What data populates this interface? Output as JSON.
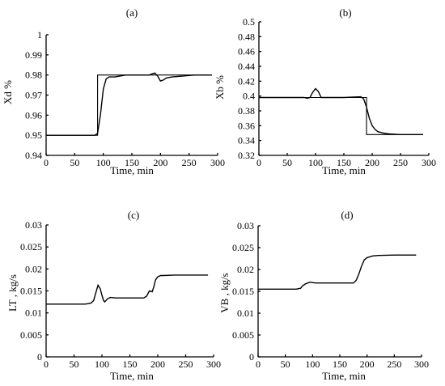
{
  "chart_data": [
    {
      "type": "line",
      "panel": "(a)",
      "xlabel": "Time, min",
      "ylabel": "Xd %",
      "xlim": [
        0,
        300
      ],
      "ylim": [
        0.94,
        1.0
      ],
      "xticks": [
        "0",
        "50",
        "100",
        "150",
        "200",
        "250",
        "300"
      ],
      "yticks": [
        "0.94",
        "0.95",
        "0.96",
        "0.97",
        "0.98",
        "0.99",
        "1"
      ],
      "series": [
        {
          "style": "setpoint",
          "x": [
            0,
            90,
            90,
            100,
            200,
            290
          ],
          "y": [
            0.95,
            0.95,
            0.98,
            0.98,
            0.98,
            0.98
          ]
        },
        {
          "style": "response",
          "x": [
            0,
            85,
            90,
            95,
            100,
            105,
            110,
            120,
            140,
            170,
            180,
            185,
            190,
            195,
            200,
            205,
            210,
            220,
            240,
            260,
            290
          ],
          "y": [
            0.95,
            0.95,
            0.951,
            0.96,
            0.973,
            0.978,
            0.979,
            0.979,
            0.98,
            0.98,
            0.98,
            0.9805,
            0.981,
            0.9795,
            0.977,
            0.9775,
            0.9785,
            0.979,
            0.9795,
            0.98,
            0.98
          ]
        }
      ]
    },
    {
      "type": "line",
      "panel": "(b)",
      "xlabel": "Time, min",
      "ylabel": "Xb %",
      "xlim": [
        0,
        300
      ],
      "ylim": [
        0.32,
        0.5
      ],
      "xticks": [
        "0",
        "50",
        "100",
        "150",
        "200",
        "250",
        "300"
      ],
      "yticks": [
        "0.32",
        "0.34",
        "0.36",
        "0.38",
        "0.4",
        "0.42",
        "0.44",
        "0.46",
        "0.48",
        "0.5"
      ],
      "series": [
        {
          "style": "setpoint",
          "x": [
            0,
            190,
            190,
            290
          ],
          "y": [
            0.398,
            0.398,
            0.348,
            0.348
          ]
        },
        {
          "style": "response",
          "x": [
            0,
            80,
            85,
            90,
            95,
            100,
            105,
            110,
            115,
            150,
            180,
            185,
            190,
            195,
            200,
            205,
            210,
            220,
            230,
            250,
            290
          ],
          "y": [
            0.398,
            0.398,
            0.397,
            0.398,
            0.405,
            0.41,
            0.406,
            0.398,
            0.398,
            0.398,
            0.399,
            0.396,
            0.385,
            0.37,
            0.36,
            0.355,
            0.352,
            0.35,
            0.349,
            0.348,
            0.348
          ]
        }
      ]
    },
    {
      "type": "line",
      "panel": "(c)",
      "xlabel": "Time, min",
      "ylabel": "LT , kg/s",
      "xlim": [
        0,
        300
      ],
      "ylim": [
        0,
        0.03
      ],
      "xticks": [
        "0",
        "50",
        "100",
        "150",
        "200",
        "250",
        "300"
      ],
      "yticks": [
        "0",
        "0.005",
        "0.01",
        "0.015",
        "0.02",
        "0.025",
        "0.03"
      ],
      "series": [
        {
          "style": "response",
          "x": [
            0,
            70,
            80,
            85,
            90,
            93,
            97,
            100,
            103,
            105,
            110,
            115,
            125,
            150,
            175,
            180,
            185,
            190,
            193,
            196,
            200,
            205,
            210,
            230,
            250,
            290
          ],
          "y": [
            0.012,
            0.012,
            0.0122,
            0.0128,
            0.015,
            0.0163,
            0.0155,
            0.014,
            0.0128,
            0.0125,
            0.0132,
            0.0135,
            0.0134,
            0.0134,
            0.0134,
            0.0138,
            0.015,
            0.0148,
            0.016,
            0.0175,
            0.0182,
            0.0185,
            0.0185,
            0.0186,
            0.0186,
            0.0186
          ]
        }
      ]
    },
    {
      "type": "line",
      "panel": "(d)",
      "xlabel": "Time, min",
      "ylabel": "VB , kg/s",
      "xlim": [
        0,
        300
      ],
      "ylim": [
        0,
        0.03
      ],
      "xticks": [
        "0",
        "50",
        "100",
        "150",
        "200",
        "250",
        "300"
      ],
      "yticks": [
        "0",
        "0.005",
        "0.01",
        "0.015",
        "0.02",
        "0.025",
        "0.03"
      ],
      "series": [
        {
          "style": "response",
          "x": [
            0,
            70,
            78,
            82,
            87,
            95,
            100,
            105,
            120,
            160,
            175,
            180,
            185,
            190,
            195,
            200,
            210,
            220,
            250,
            290
          ],
          "y": [
            0.0155,
            0.0155,
            0.0157,
            0.0163,
            0.0167,
            0.0171,
            0.017,
            0.0169,
            0.0169,
            0.0169,
            0.0169,
            0.0175,
            0.019,
            0.0208,
            0.0222,
            0.0227,
            0.0231,
            0.0232,
            0.0233,
            0.0233
          ]
        }
      ]
    }
  ]
}
